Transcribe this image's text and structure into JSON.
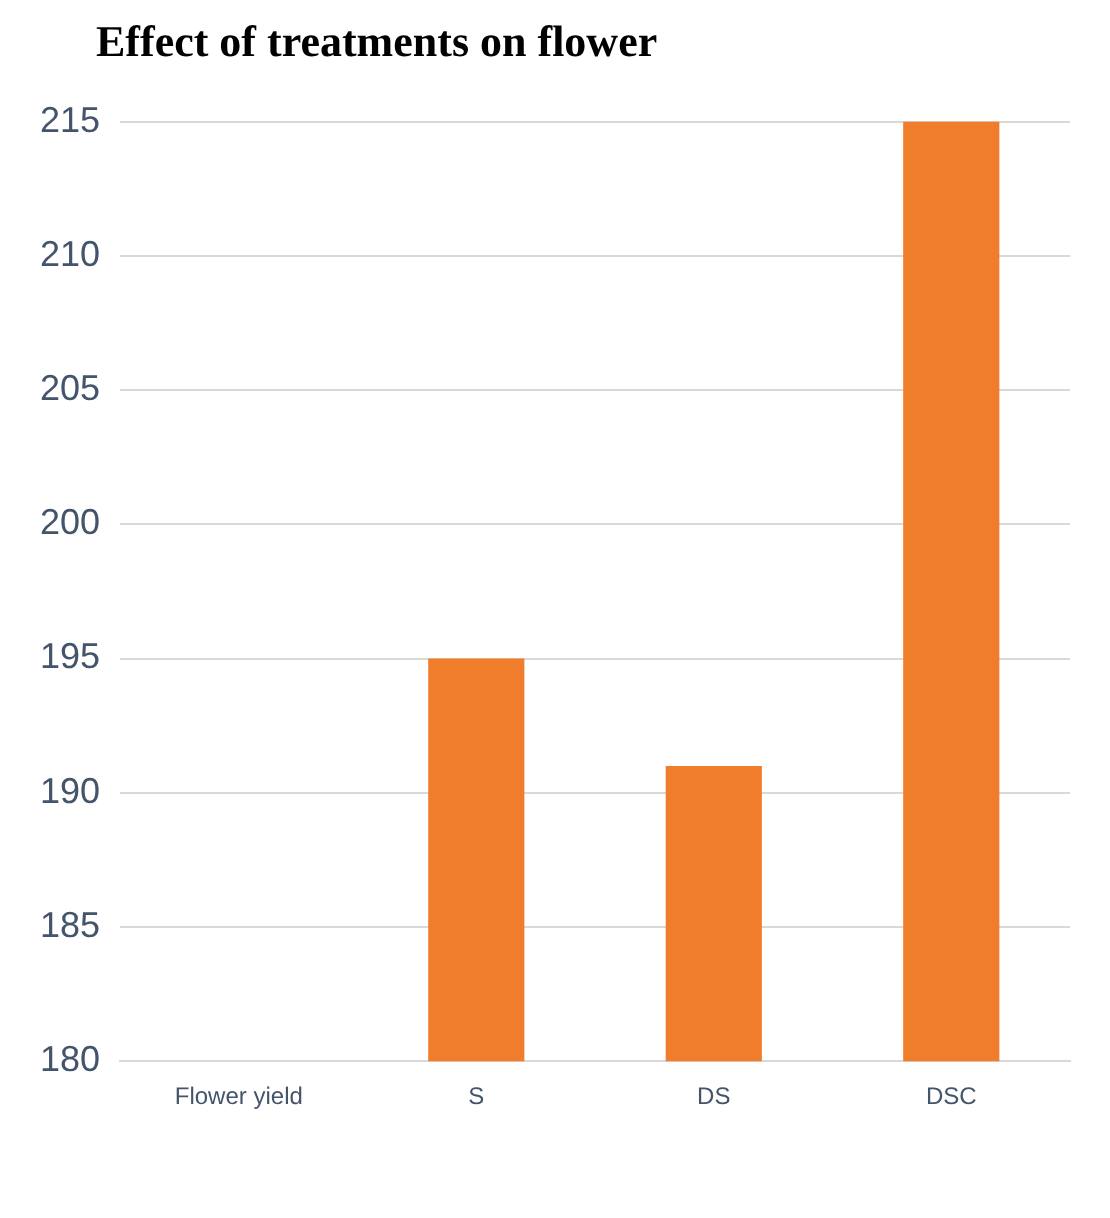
{
  "chart_data": {
    "type": "bar",
    "title": "Effect of treatments on flower",
    "categories": [
      "Flower yield",
      "S",
      "DS",
      "DSC"
    ],
    "values": [
      null,
      195,
      191,
      215
    ],
    "color": "#f07d2c",
    "ylim": [
      180,
      215
    ],
    "yticks": [
      180,
      185,
      190,
      195,
      200,
      205,
      210,
      215
    ],
    "grid": "y",
    "legend": false
  }
}
